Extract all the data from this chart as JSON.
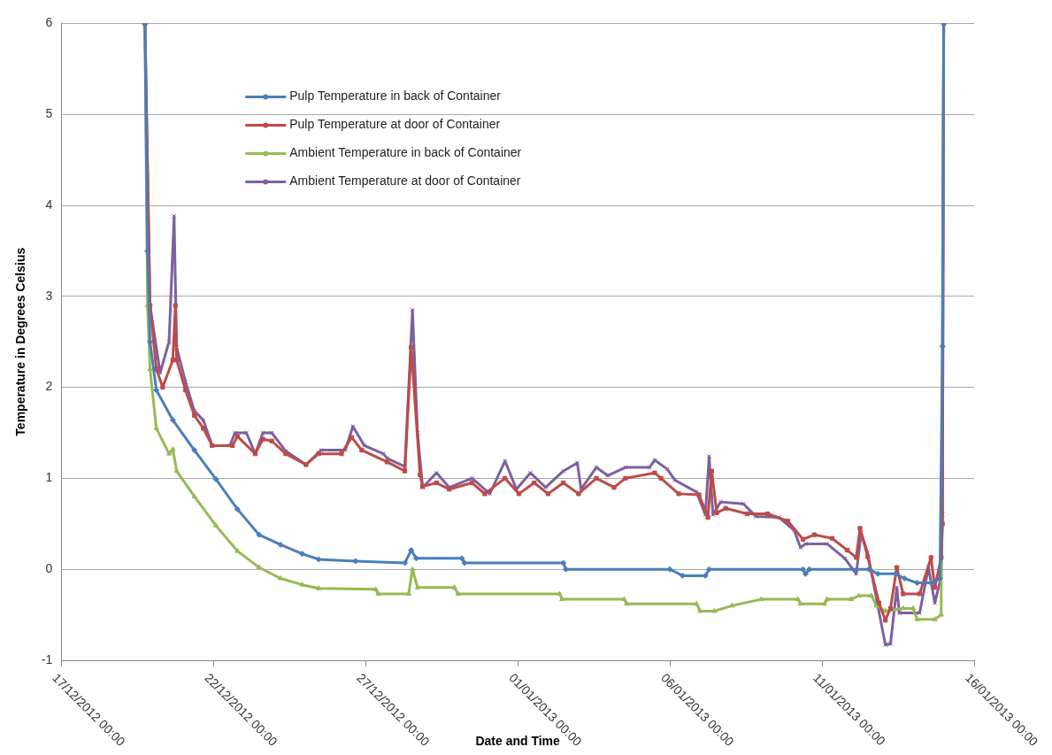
{
  "chart_data": {
    "type": "line",
    "xlabel": "Date and Time",
    "ylabel": "Temperature in Degrees Celsius",
    "xlim": [
      "2012-12-17",
      "2013-01-16"
    ],
    "xticks": [
      {
        "value": "2012-12-17",
        "label": "17/12/2012 00:00"
      },
      {
        "value": "2012-12-22",
        "label": "22/12/2012 00:00"
      },
      {
        "value": "2012-12-27",
        "label": "27/12/2012 00:00"
      },
      {
        "value": "2013-01-01",
        "label": "01/01/2013 00:00"
      },
      {
        "value": "2013-01-06",
        "label": "06/01/2013 00:00"
      },
      {
        "value": "2013-01-11",
        "label": "11/01/2013 00:00"
      },
      {
        "value": "2013-01-16",
        "label": "16/01/2013 00:00"
      }
    ],
    "ylim": [
      -1,
      6
    ],
    "yticks": [
      -1,
      0,
      1,
      2,
      3,
      4,
      5,
      6
    ],
    "grid": "y",
    "legend": "top left",
    "line_style": "solid",
    "series": [
      {
        "name": "Pulp Temperature in back of Container",
        "color": "#4a7ebb",
        "marker": "diamond",
        "x": [
          "2012-12-19T18:00",
          "2012-12-19T20:00",
          "2012-12-19T22:00",
          "2012-12-20T03:00",
          "2012-12-20T16:00",
          "2012-12-21T09:00",
          "2012-12-22T02:00",
          "2012-12-22T19:00",
          "2012-12-23T12:00",
          "2012-12-24T05:00",
          "2012-12-24T22:00",
          "2012-12-25T11:00",
          "2012-12-26T16:00",
          "2012-12-28T07:00",
          "2012-12-28T12:00",
          "2012-12-28T16:00",
          "2012-12-30T04:00",
          "2012-12-30T06:00",
          "2013-01-02T12:00",
          "2013-01-02T14:00",
          "2013-01-06T00:00",
          "2013-01-06T10:00",
          "2013-01-07T04:00",
          "2013-01-07T07:00",
          "2013-01-10T09:00",
          "2013-01-10T11:00",
          "2013-01-10T14:00",
          "2013-01-12T13:00",
          "2013-01-12T20:00",
          "2013-01-13T10:00",
          "2013-01-13T17:00",
          "2013-01-14T03:00",
          "2013-01-14T14:00",
          "2013-01-14T21:00",
          "2013-01-14T23:00",
          "2013-01-15T00:00"
        ],
        "values": [
          6,
          3.5,
          2.5,
          1.97,
          1.64,
          1.31,
          0.99,
          0.66,
          0.38,
          0.27,
          0.17,
          0.11,
          0.09,
          0.07,
          0.21,
          0.12,
          0.12,
          0.07,
          0.07,
          0,
          0,
          -0.07,
          -0.07,
          0,
          0,
          -0.05,
          0,
          0,
          -0.05,
          -0.05,
          -0.1,
          -0.15,
          -0.15,
          -0.1,
          2.45,
          6
        ]
      },
      {
        "name": "Pulp Temperature at door of Container",
        "color": "#be4b48",
        "marker": "square",
        "x": [
          "2012-12-19T18:00",
          "2012-12-19T22:00",
          "2012-12-20T03:00",
          "2012-12-20T08:00",
          "2012-12-20T16:00",
          "2012-12-20T18:00",
          "2012-12-20T19:00",
          "2012-12-21T02:00",
          "2012-12-21T09:00",
          "2012-12-21T16:00",
          "2012-12-21T23:00",
          "2012-12-22T15:00",
          "2012-12-22T19:00",
          "2012-12-23T09:00",
          "2012-12-23T15:00",
          "2012-12-23T22:00",
          "2012-12-24T09:00",
          "2012-12-25T01:00",
          "2012-12-25T11:00",
          "2012-12-26T05:00",
          "2012-12-26T13:00",
          "2012-12-26T21:00",
          "2012-12-27T17:00",
          "2012-12-28T07:00",
          "2012-12-28T12:00",
          "2012-12-28T19:00",
          "2012-12-28T21:00",
          "2012-12-29T08:00",
          "2012-12-29T18:00",
          "2012-12-30T12:00",
          "2012-12-30T22:00",
          "2012-12-31T14:00",
          "2013-01-01T01:00",
          "2013-01-01T13:00",
          "2013-01-02T00:00",
          "2013-01-02T12:00",
          "2013-01-03T00:00",
          "2013-01-03T14:00",
          "2013-01-04T04:00",
          "2013-01-04T13:00",
          "2013-01-05T12:00",
          "2013-01-05T17:00",
          "2013-01-06T07:00",
          "2013-01-06T23:00",
          "2013-01-07T06:00",
          "2013-01-07T09:00",
          "2013-01-07T13:00",
          "2013-01-07T20:00",
          "2013-01-08T13:00",
          "2013-01-09T05:00",
          "2013-01-09T21:00",
          "2013-01-10T09:00",
          "2013-01-10T18:00",
          "2013-01-11T08:00",
          "2013-01-11T20:00",
          "2013-01-12T03:00",
          "2013-01-12T06:00",
          "2013-01-12T12:00",
          "2013-01-12T21:00",
          "2013-01-13T02:00",
          "2013-01-13T06:00",
          "2013-01-13T11:00",
          "2013-01-13T16:00",
          "2013-01-14T05:00",
          "2013-01-14T14:00",
          "2013-01-14T17:00",
          "2013-01-14T22:00",
          "2013-01-14T23:00",
          "2013-01-15T00:00"
        ],
        "values": [
          6,
          2.9,
          2.2,
          2.0,
          2.3,
          2.9,
          2.3,
          1.97,
          1.69,
          1.55,
          1.36,
          1.36,
          1.46,
          1.27,
          1.43,
          1.41,
          1.27,
          1.15,
          1.27,
          1.27,
          1.45,
          1.31,
          1.18,
          1.08,
          2.44,
          1.04,
          0.91,
          0.95,
          0.88,
          0.95,
          0.83,
          1.0,
          0.83,
          0.95,
          0.83,
          0.95,
          0.83,
          1.0,
          0.9,
          1.0,
          1.06,
          1.0,
          0.83,
          0.82,
          0.57,
          1.08,
          0.62,
          0.67,
          0.61,
          0.61,
          0.53,
          0.33,
          0.38,
          0.34,
          0.21,
          0.13,
          0.45,
          0.14,
          -0.37,
          -0.56,
          -0.43,
          0.02,
          -0.27,
          -0.27,
          0.13,
          -0.2,
          0.13,
          0.5,
          6
        ]
      },
      {
        "name": "Ambient Temperature in back of Container",
        "color": "#98b954",
        "marker": "triangle",
        "x": [
          "2012-12-19T18:00",
          "2012-12-19T20:00",
          "2012-12-19T22:00",
          "2012-12-20T03:00",
          "2012-12-20T13:00",
          "2012-12-20T16:00",
          "2012-12-20T19:00",
          "2012-12-21T09:00",
          "2012-12-22T02:00",
          "2012-12-22T19:00",
          "2012-12-23T12:00",
          "2012-12-24T05:00",
          "2012-12-24T22:00",
          "2012-12-25T11:00",
          "2012-12-27T08:00",
          "2012-12-27T10:00",
          "2012-12-28T10:00",
          "2012-12-28T13:00",
          "2012-12-28T17:00",
          "2012-12-29T22:00",
          "2012-12-30T01:00",
          "2013-01-02T09:00",
          "2013-01-02T11:00",
          "2013-01-04T12:00",
          "2013-01-04T14:00",
          "2013-01-06T21:00",
          "2013-01-07T00:00",
          "2013-01-07T11:00",
          "2013-01-08T01:00",
          "2013-01-09T00:00",
          "2013-01-10T05:00",
          "2013-01-10T07:00",
          "2013-01-11T02:00",
          "2013-01-11T04:00",
          "2013-01-11T23:00",
          "2013-01-12T05:00",
          "2013-01-12T15:00",
          "2013-01-12T19:00",
          "2013-01-13T02:00",
          "2013-01-13T16:00",
          "2013-01-14T00:00",
          "2013-01-14T03:00",
          "2013-01-14T17:00",
          "2013-01-14T22:00",
          "2013-01-15T00:00"
        ],
        "values": [
          6,
          2.9,
          2.2,
          1.55,
          1.27,
          1.32,
          1.08,
          0.8,
          0.48,
          0.2,
          0.02,
          -0.1,
          -0.17,
          -0.21,
          -0.22,
          -0.27,
          -0.27,
          0,
          -0.2,
          -0.2,
          -0.27,
          -0.27,
          -0.33,
          -0.33,
          -0.38,
          -0.38,
          -0.46,
          -0.46,
          -0.4,
          -0.33,
          -0.33,
          -0.38,
          -0.38,
          -0.33,
          -0.33,
          -0.29,
          -0.29,
          -0.4,
          -0.46,
          -0.43,
          -0.43,
          -0.55,
          -0.55,
          -0.5,
          6
        ]
      },
      {
        "name": "Ambient Temperature at door of Container",
        "color": "#7d60a0",
        "marker": "cross",
        "x": [
          "2012-12-19T18:00",
          "2012-12-19T22:00",
          "2012-12-20T06:00",
          "2012-12-20T13:00",
          "2012-12-20T17:00",
          "2012-12-20T19:00",
          "2012-12-21T02:00",
          "2012-12-21T09:00",
          "2012-12-21T16:00",
          "2012-12-21T23:00",
          "2012-12-22T13:00",
          "2012-12-22T17:00",
          "2012-12-23T02:00",
          "2012-12-23T09:00",
          "2012-12-23T15:00",
          "2012-12-23T22:00",
          "2012-12-24T09:00",
          "2012-12-25T01:00",
          "2012-12-25T13:00",
          "2012-12-26T08:00",
          "2012-12-26T14:00",
          "2012-12-26T23:00",
          "2012-12-27T14:00",
          "2012-12-27T17:00",
          "2012-12-28T07:00",
          "2012-12-28T13:00",
          "2012-12-28T17:00",
          "2012-12-28T21:00",
          "2012-12-29T08:00",
          "2012-12-29T18:00",
          "2012-12-30T12:00",
          "2012-12-31T02:00",
          "2012-12-31T14:00",
          "2012-12-31T23:00",
          "2013-01-01T10:00",
          "2013-01-01T22:00",
          "2013-01-02T12:00",
          "2013-01-02T23:00",
          "2013-01-03T02:00",
          "2013-01-03T14:00",
          "2013-01-03T23:00",
          "2013-01-04T13:00",
          "2013-01-05T08:00",
          "2013-01-05T12:00",
          "2013-01-05T22:00",
          "2013-01-06T04:00",
          "2013-01-06T21:00",
          "2013-01-07T04:00",
          "2013-01-07T07:00",
          "2013-01-07T10:00",
          "2013-01-07T16:00",
          "2013-01-08T10:00",
          "2013-01-08T20:00",
          "2013-01-09T14:00",
          "2013-01-10T02:00",
          "2013-01-10T07:00",
          "2013-01-10T11:00",
          "2013-01-11T04:00",
          "2013-01-11T18:00",
          "2013-01-12T03:00",
          "2013-01-12T07:00",
          "2013-01-12T12:00",
          "2013-01-13T02:00",
          "2013-01-13T06:00",
          "2013-01-13T11:00",
          "2013-01-13T13:00",
          "2013-01-14T05:00",
          "2013-01-14T12:00",
          "2013-01-14T17:00",
          "2013-01-14T22:00",
          "2013-01-14T23:00",
          "2013-01-15T00:00"
        ],
        "values": [
          6,
          2.9,
          2.16,
          2.5,
          3.88,
          2.44,
          2.06,
          1.74,
          1.64,
          1.36,
          1.36,
          1.5,
          1.5,
          1.27,
          1.5,
          1.5,
          1.3,
          1.15,
          1.31,
          1.31,
          1.57,
          1.36,
          1.27,
          1.22,
          1.13,
          2.85,
          1.5,
          0.9,
          1.06,
          0.9,
          1.0,
          0.83,
          1.19,
          0.88,
          1.06,
          0.9,
          1.08,
          1.17,
          0.88,
          1.12,
          1.03,
          1.12,
          1.12,
          1.2,
          1.1,
          0.98,
          0.85,
          0.6,
          1.24,
          0.6,
          0.74,
          0.72,
          0.58,
          0.57,
          0.43,
          0.24,
          0.28,
          0.28,
          0.12,
          -0.05,
          0.4,
          0.18,
          -0.83,
          -0.82,
          -0.2,
          -0.48,
          -0.48,
          0.02,
          -0.37,
          -0.08,
          0.6,
          6
        ]
      }
    ]
  }
}
